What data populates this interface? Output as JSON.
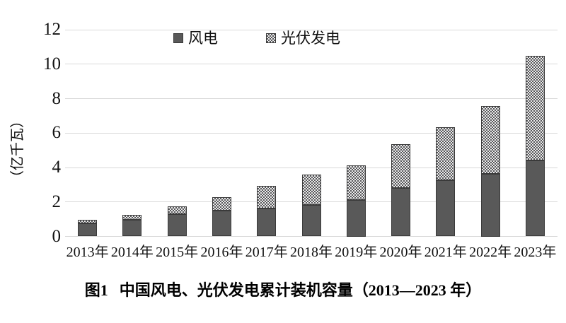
{
  "figure": {
    "caption_prefix": "图1",
    "caption_text": "中国风电、光伏发电累计装机容量（2013—2023 年）"
  },
  "chart_data": {
    "type": "bar",
    "stacked": true,
    "title": "图1 中国风电、光伏发电累计装机容量（2013—2023 年）",
    "ylabel": "（亿千瓦）",
    "xlabel": "",
    "ylim": [
      0,
      12
    ],
    "yticks": [
      0,
      2,
      4,
      6,
      8,
      10,
      12
    ],
    "grid": "horizontal",
    "legend_position": "top-center",
    "categories": [
      "2013年",
      "2014年",
      "2015年",
      "2016年",
      "2017年",
      "2018年",
      "2019年",
      "2020年",
      "2021年",
      "2022年",
      "2023年"
    ],
    "series": [
      {
        "name": "风电",
        "pattern": "solid",
        "color": "#595959",
        "values": [
          0.77,
          0.96,
          1.31,
          1.49,
          1.64,
          1.84,
          2.1,
          2.81,
          3.28,
          3.65,
          4.41
        ]
      },
      {
        "name": "光伏发电",
        "pattern": "checker-dots",
        "color": "#595959",
        "values": [
          0.19,
          0.28,
          0.43,
          0.77,
          1.3,
          1.74,
          2.04,
          2.53,
          3.06,
          3.93,
          6.09
        ]
      }
    ],
    "totals": [
      0.96,
      1.24,
      1.74,
      2.26,
      2.94,
      3.58,
      4.14,
      5.34,
      6.34,
      7.58,
      10.5
    ]
  },
  "colors": {
    "wind_fill": "#595959",
    "bar_border": "#3a3a3a",
    "pattern_bg": "#ececec",
    "gridline": "#d9d9d9",
    "text": "#111111"
  }
}
